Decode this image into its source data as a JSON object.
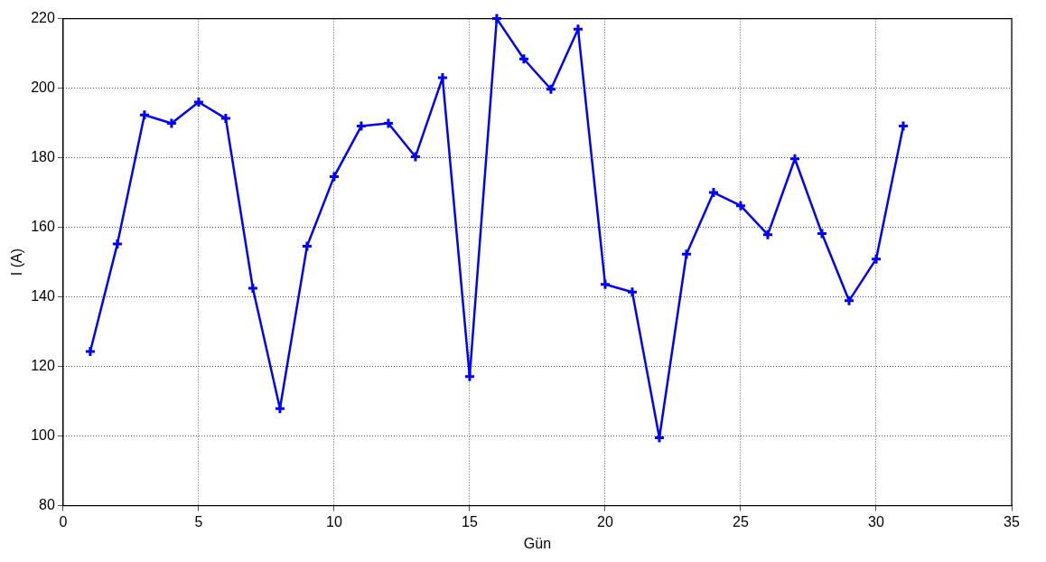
{
  "chart_data": {
    "type": "line",
    "xlabel": "Gün",
    "ylabel": "I (A)",
    "x": [
      1,
      2,
      3,
      4,
      5,
      6,
      7,
      8,
      9,
      10,
      11,
      12,
      13,
      14,
      15,
      16,
      17,
      18,
      19,
      20,
      21,
      22,
      23,
      24,
      25,
      26,
      27,
      28,
      29,
      30,
      31
    ],
    "series": [
      {
        "color": "#0000ff",
        "values": [
          124.3,
          155.2,
          192.3,
          189.9,
          196,
          191.3,
          142.5,
          107.9,
          154.6,
          174.6,
          189.1,
          189.9,
          180.3,
          203,
          117.1,
          220,
          208.4,
          199.7,
          217,
          143.6,
          141.4,
          99.5,
          152.3,
          170,
          166.2,
          157.9,
          179.7,
          158.2,
          138.9,
          150.9,
          189.1
        ]
      }
    ],
    "xlim": [
      0,
      35
    ],
    "xticks": [
      0,
      5,
      10,
      15,
      20,
      25,
      30,
      35
    ],
    "ylim": [
      80,
      220
    ],
    "yticks": [
      80,
      100,
      120,
      140,
      160,
      180,
      200,
      220
    ],
    "grid": true,
    "marker": "cross",
    "line_style": "solid",
    "legend": false
  }
}
